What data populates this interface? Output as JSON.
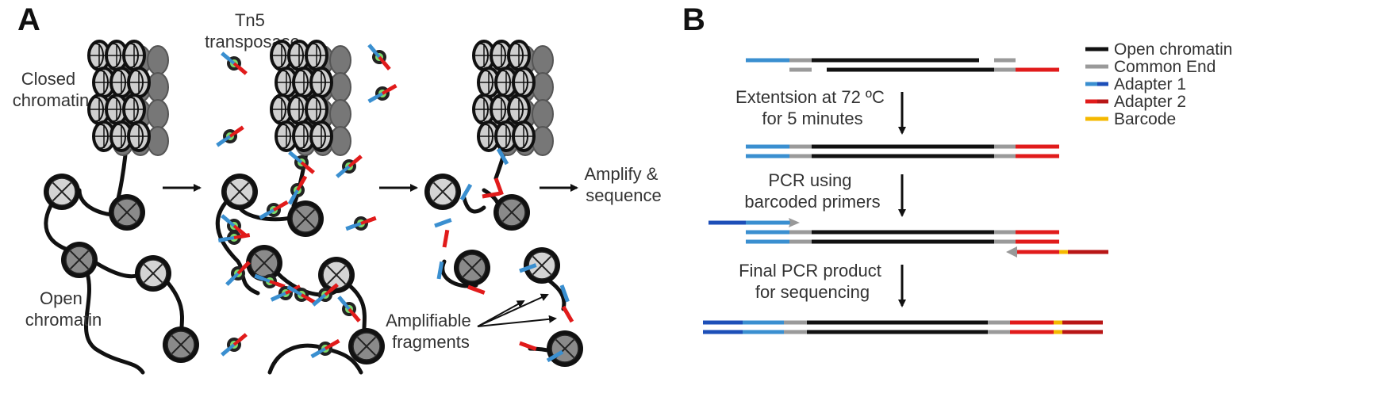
{
  "panel_a": {
    "letter": "A",
    "labels": {
      "tn5": [
        "Tn5",
        "transposase"
      ],
      "closed": [
        "Closed",
        "chromatin"
      ],
      "open": [
        "Open",
        "chromatin"
      ],
      "amplify": [
        "Amplify &",
        "sequence"
      ],
      "fragments": [
        "Amplifiable",
        "fragments"
      ]
    }
  },
  "panel_b": {
    "letter": "B",
    "steps": {
      "extension": [
        "Extentsion at 72 ºC",
        "for 5 minutes"
      ],
      "pcr": [
        "PCR using",
        "barcoded primers"
      ],
      "final": [
        "Final PCR product",
        "for sequencing"
      ]
    },
    "legend": [
      {
        "label": "Open chromatin",
        "color": "#111111"
      },
      {
        "label": "Common End",
        "color": "#9a9a9a"
      },
      {
        "label": "Adapter 1",
        "color": "#3a8fd0",
        "color2": "#1d4fb8"
      },
      {
        "label": "Adapter 2",
        "color": "#e11b1b",
        "color2": "#b81616"
      },
      {
        "label": "Barcode",
        "color": "#f5b800"
      }
    ]
  }
}
